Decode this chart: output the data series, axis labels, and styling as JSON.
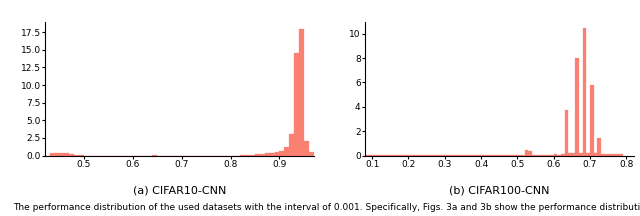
{
  "chart1": {
    "title": "(a) CIFAR10-CNN",
    "xlim": [
      0.42,
      0.97
    ],
    "ylim": [
      0,
      19
    ],
    "yticks": [
      0.0,
      2.5,
      5.0,
      7.5,
      10.0,
      12.5,
      15.0,
      17.5
    ],
    "xticks": [
      0.5,
      0.6,
      0.7,
      0.8,
      0.9
    ],
    "bins": [
      0.42,
      0.43,
      0.44,
      0.45,
      0.46,
      0.47,
      0.48,
      0.49,
      0.5,
      0.51,
      0.52,
      0.53,
      0.54,
      0.55,
      0.56,
      0.57,
      0.58,
      0.59,
      0.6,
      0.61,
      0.62,
      0.63,
      0.64,
      0.65,
      0.66,
      0.67,
      0.68,
      0.69,
      0.7,
      0.71,
      0.72,
      0.73,
      0.74,
      0.75,
      0.76,
      0.77,
      0.78,
      0.79,
      0.8,
      0.81,
      0.82,
      0.83,
      0.84,
      0.85,
      0.86,
      0.87,
      0.88,
      0.89,
      0.9,
      0.91,
      0.92,
      0.93,
      0.94,
      0.95,
      0.96,
      0.97
    ],
    "counts": [
      0.0,
      0.3,
      0.3,
      0.3,
      0.3,
      0.2,
      0.1,
      0.1,
      0.0,
      0.0,
      0.0,
      0.0,
      0.0,
      0.0,
      0.0,
      0.0,
      0.0,
      0.0,
      0.0,
      0.0,
      0.0,
      0.0,
      0.1,
      0.0,
      0.0,
      0.0,
      0.0,
      0.0,
      0.0,
      0.0,
      0.0,
      0.0,
      0.0,
      0.0,
      0.0,
      0.0,
      0.0,
      0.0,
      0.0,
      0.0,
      0.1,
      0.1,
      0.1,
      0.2,
      0.2,
      0.3,
      0.4,
      0.5,
      0.6,
      1.2,
      3.1,
      14.5,
      18.0,
      2.0,
      0.5
    ]
  },
  "chart2": {
    "title": "(b) CIFAR100-CNN",
    "xlim": [
      0.08,
      0.82
    ],
    "ylim": [
      0,
      11
    ],
    "yticks": [
      0,
      2,
      4,
      6,
      8,
      10
    ],
    "xticks": [
      0.1,
      0.2,
      0.3,
      0.4,
      0.5,
      0.6,
      0.7,
      0.8
    ],
    "bins": [
      0.08,
      0.09,
      0.1,
      0.11,
      0.12,
      0.13,
      0.14,
      0.15,
      0.16,
      0.17,
      0.18,
      0.19,
      0.2,
      0.21,
      0.22,
      0.23,
      0.24,
      0.25,
      0.26,
      0.27,
      0.28,
      0.29,
      0.3,
      0.31,
      0.32,
      0.33,
      0.34,
      0.35,
      0.36,
      0.37,
      0.38,
      0.39,
      0.4,
      0.41,
      0.42,
      0.43,
      0.44,
      0.45,
      0.46,
      0.47,
      0.48,
      0.49,
      0.5,
      0.51,
      0.52,
      0.53,
      0.54,
      0.55,
      0.56,
      0.57,
      0.58,
      0.59,
      0.6,
      0.61,
      0.62,
      0.63,
      0.64,
      0.65,
      0.66,
      0.67,
      0.68,
      0.69,
      0.7,
      0.71,
      0.72,
      0.73,
      0.74,
      0.75,
      0.76,
      0.77,
      0.78,
      0.79,
      0.8,
      0.81
    ],
    "counts": [
      0.05,
      0.05,
      0.05,
      0.05,
      0.05,
      0.05,
      0.05,
      0.05,
      0.05,
      0.05,
      0.05,
      0.05,
      0.05,
      0.05,
      0.05,
      0.05,
      0.05,
      0.05,
      0.05,
      0.05,
      0.05,
      0.05,
      0.05,
      0.05,
      0.05,
      0.05,
      0.05,
      0.05,
      0.05,
      0.05,
      0.05,
      0.05,
      0.05,
      0.05,
      0.05,
      0.05,
      0.05,
      0.05,
      0.05,
      0.05,
      0.05,
      0.05,
      0.05,
      0.05,
      0.45,
      0.35,
      0.05,
      0.05,
      0.05,
      0.05,
      0.05,
      0.05,
      0.1,
      0.05,
      0.1,
      3.7,
      0.2,
      0.2,
      8.0,
      0.2,
      10.5,
      0.2,
      5.8,
      0.2,
      1.4,
      0.15,
      0.1,
      0.1,
      0.1,
      0.1,
      0.1
    ]
  },
  "bar_color": "#FA8072",
  "bar_edgecolor": "#FA8072",
  "caption": "The performance distribution of the used datasets with the interval of 0.001. Specifically, Figs. 3a and 3b show the performance distributio",
  "caption_fontsize": 6.5,
  "title_fontsize": 8,
  "tick_fontsize": 6.5
}
